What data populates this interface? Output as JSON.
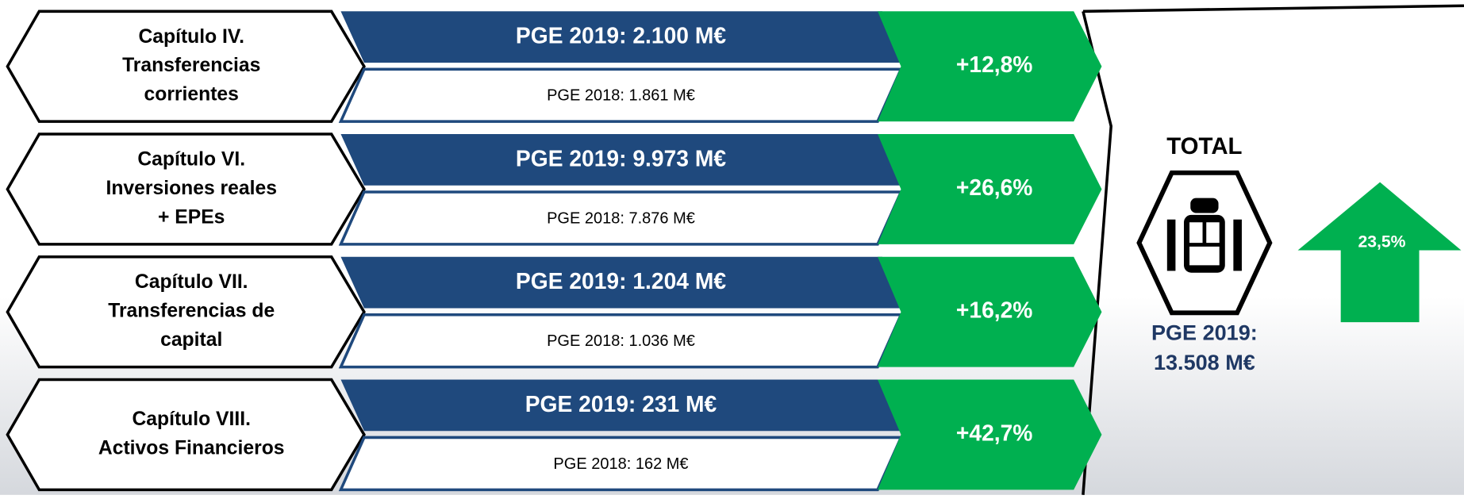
{
  "rows": [
    {
      "label": [
        "Capítulo IV.",
        "Transferencias",
        "corrientes"
      ],
      "pge2019": "PGE 2019: 2.100 M€",
      "pge2018": "PGE 2018: 1.861 M€",
      "change": "+12,8%"
    },
    {
      "label": [
        "Capítulo VI.",
        "Inversiones reales",
        "+  EPEs"
      ],
      "pge2019": "PGE 2019: 9.973 M€",
      "pge2018": "PGE 2018: 7.876 M€",
      "change": "+26,6%"
    },
    {
      "label": [
        "Capítulo VII.",
        "Transferencias de",
        "capital"
      ],
      "pge2019": "PGE 2019: 1.204 M€",
      "pge2018": "PGE 2018: 1.036 M€",
      "change": "+16,2%"
    },
    {
      "label": [
        "Capítulo VIII.",
        "Activos Financieros"
      ],
      "pge2019": "PGE 2019: 231 M€",
      "pge2018": "PGE 2018: 162 M€",
      "change": "+42,7%"
    }
  ],
  "total": {
    "title": "TOTAL",
    "amount": [
      "PGE 2019:",
      "13.508 M€"
    ],
    "growth": "23,5%"
  }
}
